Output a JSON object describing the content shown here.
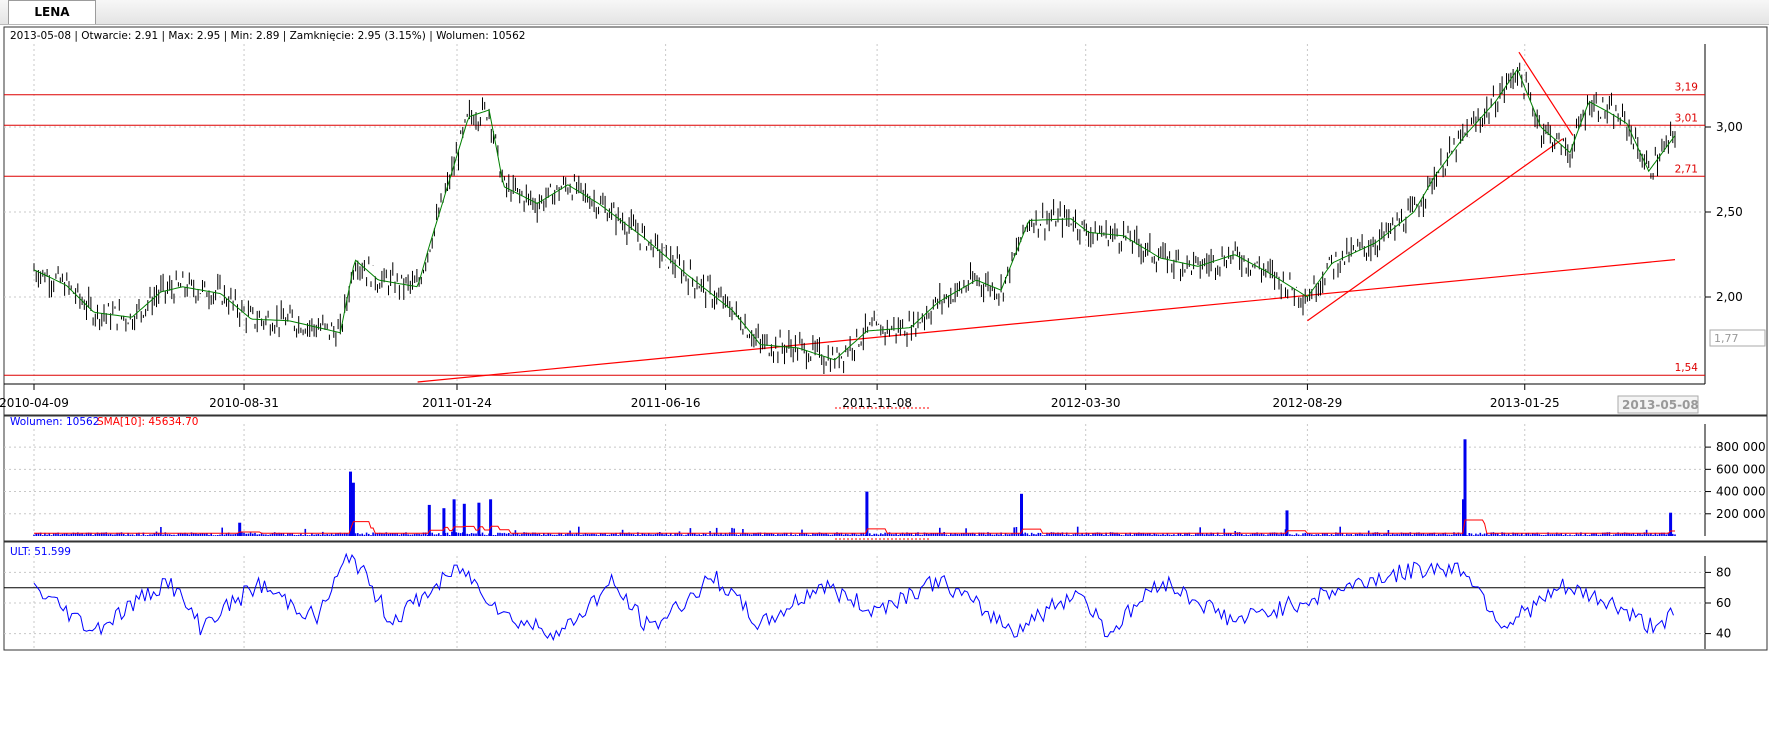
{
  "tab": {
    "label": "LENA"
  },
  "info": {
    "ohlc": "2013-05-08 | Otwarcie: 2.91 | Max: 2.95 | Min: 2.89 | Zamknięcie: 2.95 (3.15%)  | Wolumen: 10562",
    "volume_label": "Wolumen: 10562",
    "sma_label": "SMA[10]: 45634.70",
    "ult_label": "ULT: 51.599"
  },
  "colors": {
    "candle": "#000000",
    "ma": "#008000",
    "hline": "#dd0000",
    "trend": "#ff0000",
    "volume": "#0000ee",
    "vol_sma": "#ff0000",
    "ult": "#0000ff",
    "grid": "#c8c8c8"
  },
  "chart_data": [
    {
      "type": "candlestick",
      "title": "LENA",
      "x_ticks": [
        "2010-04-09",
        "2010-08-31",
        "2011-01-24",
        "2011-06-16",
        "2011-11-08",
        "2012-03-30",
        "2012-08-29",
        "2013-01-25"
      ],
      "x_range": [
        "2010-04-09",
        "2013-05-08"
      ],
      "y_ticks": [
        "2,00",
        "2,50",
        "3,00"
      ],
      "ylim": [
        1.54,
        3.48
      ],
      "cursor_price": "1,77",
      "cursor_date": "2013-05-08",
      "horizontal_levels": [
        {
          "value": 3.19,
          "label": "3,19"
        },
        {
          "value": 3.01,
          "label": "3,01"
        },
        {
          "value": 2.71,
          "label": "2,71"
        },
        {
          "value": 1.54,
          "label": "1,54"
        }
      ],
      "trendlines": [
        {
          "from": {
            "date": "2010-12-28",
            "price": 1.5
          },
          "to": {
            "date": "2013-05-08",
            "price": 2.22
          }
        },
        {
          "from": {
            "date": "2012-08-29",
            "price": 1.86
          },
          "to": {
            "date": "2013-02-20",
            "price": 2.93
          }
        },
        {
          "from": {
            "date": "2013-01-21",
            "price": 3.44
          },
          "to": {
            "date": "2013-02-27",
            "price": 2.95
          }
        }
      ],
      "close_path": [
        {
          "date": "2010-04-09",
          "close": 2.16
        },
        {
          "date": "2010-05-01",
          "close": 2.07
        },
        {
          "date": "2010-05-20",
          "close": 1.91
        },
        {
          "date": "2010-06-15",
          "close": 1.88
        },
        {
          "date": "2010-07-05",
          "close": 2.03
        },
        {
          "date": "2010-07-20",
          "close": 2.06
        },
        {
          "date": "2010-08-15",
          "close": 2.02
        },
        {
          "date": "2010-09-05",
          "close": 1.87
        },
        {
          "date": "2010-10-01",
          "close": 1.86
        },
        {
          "date": "2010-11-05",
          "close": 1.79
        },
        {
          "date": "2010-11-15",
          "close": 2.22
        },
        {
          "date": "2010-12-01",
          "close": 2.1
        },
        {
          "date": "2010-12-28",
          "close": 2.06
        },
        {
          "date": "2011-01-05",
          "close": 2.3
        },
        {
          "date": "2011-01-20",
          "close": 2.72
        },
        {
          "date": "2011-02-01",
          "close": 3.06
        },
        {
          "date": "2011-02-15",
          "close": 3.1
        },
        {
          "date": "2011-02-25",
          "close": 2.65
        },
        {
          "date": "2011-03-20",
          "close": 2.55
        },
        {
          "date": "2011-04-10",
          "close": 2.66
        },
        {
          "date": "2011-05-01",
          "close": 2.55
        },
        {
          "date": "2011-06-01",
          "close": 2.35
        },
        {
          "date": "2011-07-01",
          "close": 2.13
        },
        {
          "date": "2011-08-01",
          "close": 1.92
        },
        {
          "date": "2011-08-20",
          "close": 1.72
        },
        {
          "date": "2011-09-15",
          "close": 1.7
        },
        {
          "date": "2011-10-10",
          "close": 1.63
        },
        {
          "date": "2011-11-01",
          "close": 1.8
        },
        {
          "date": "2011-12-01",
          "close": 1.82
        },
        {
          "date": "2011-12-20",
          "close": 1.97
        },
        {
          "date": "2012-01-15",
          "close": 2.1
        },
        {
          "date": "2012-02-01",
          "close": 2.04
        },
        {
          "date": "2012-02-20",
          "close": 2.45
        },
        {
          "date": "2012-03-20",
          "close": 2.46
        },
        {
          "date": "2012-04-01",
          "close": 2.38
        },
        {
          "date": "2012-04-25",
          "close": 2.36
        },
        {
          "date": "2012-05-20",
          "close": 2.23
        },
        {
          "date": "2012-06-15",
          "close": 2.18
        },
        {
          "date": "2012-07-10",
          "close": 2.25
        },
        {
          "date": "2012-08-01",
          "close": 2.15
        },
        {
          "date": "2012-08-29",
          "close": 2.0
        },
        {
          "date": "2012-09-15",
          "close": 2.2
        },
        {
          "date": "2012-10-15",
          "close": 2.32
        },
        {
          "date": "2012-11-10",
          "close": 2.5
        },
        {
          "date": "2012-11-25",
          "close": 2.72
        },
        {
          "date": "2012-12-15",
          "close": 2.95
        },
        {
          "date": "2013-01-05",
          "close": 3.15
        },
        {
          "date": "2013-01-20",
          "close": 3.34
        },
        {
          "date": "2013-02-05",
          "close": 3.0
        },
        {
          "date": "2013-02-25",
          "close": 2.85
        },
        {
          "date": "2013-03-10",
          "close": 3.15
        },
        {
          "date": "2013-03-25",
          "close": 3.08
        },
        {
          "date": "2013-04-05",
          "close": 3.02
        },
        {
          "date": "2013-04-20",
          "close": 2.74
        },
        {
          "date": "2013-05-08",
          "close": 2.95
        }
      ]
    },
    {
      "type": "bar",
      "title": "Wolumen",
      "series": [
        {
          "name": "Wolumen"
        },
        {
          "name": "SMA[10]"
        }
      ],
      "y_ticks": [
        "200 000",
        "400 000",
        "600 000",
        "800 000"
      ],
      "ylim": [
        0,
        900000
      ],
      "baseline_volume": 20000,
      "spikes": [
        {
          "date": "2010-08-28",
          "value": 120000
        },
        {
          "date": "2010-11-12",
          "value": 580000
        },
        {
          "date": "2010-11-14",
          "value": 480000
        },
        {
          "date": "2011-01-05",
          "value": 280000
        },
        {
          "date": "2011-01-15",
          "value": 250000
        },
        {
          "date": "2011-01-22",
          "value": 330000
        },
        {
          "date": "2011-01-29",
          "value": 290000
        },
        {
          "date": "2011-02-08",
          "value": 300000
        },
        {
          "date": "2011-02-16",
          "value": 330000
        },
        {
          "date": "2011-11-01",
          "value": 400000
        },
        {
          "date": "2012-02-15",
          "value": 380000
        },
        {
          "date": "2012-08-15",
          "value": 230000
        },
        {
          "date": "2012-12-15",
          "value": 870000
        },
        {
          "date": "2012-12-14",
          "value": 330000
        },
        {
          "date": "2013-05-05",
          "value": 210000
        }
      ]
    },
    {
      "type": "line",
      "title": "ULT",
      "y_ticks": [
        "40",
        "60",
        "80"
      ],
      "ylim": [
        35,
        95
      ],
      "reference_line": 70,
      "points": [
        {
          "date": "2010-04-09",
          "value": 70
        },
        {
          "date": "2010-05-20",
          "value": 42
        },
        {
          "date": "2010-07-10",
          "value": 75
        },
        {
          "date": "2010-08-01",
          "value": 45
        },
        {
          "date": "2010-09-10",
          "value": 72
        },
        {
          "date": "2010-10-20",
          "value": 50
        },
        {
          "date": "2010-11-12",
          "value": 93
        },
        {
          "date": "2010-12-10",
          "value": 48
        },
        {
          "date": "2011-01-26",
          "value": 83
        },
        {
          "date": "2011-03-01",
          "value": 50
        },
        {
          "date": "2011-04-05",
          "value": 40
        },
        {
          "date": "2011-05-10",
          "value": 73
        },
        {
          "date": "2011-06-05",
          "value": 43
        },
        {
          "date": "2011-07-20",
          "value": 77
        },
        {
          "date": "2011-08-20",
          "value": 45
        },
        {
          "date": "2011-10-01",
          "value": 72
        },
        {
          "date": "2011-11-05",
          "value": 55
        },
        {
          "date": "2011-12-20",
          "value": 75
        },
        {
          "date": "2012-02-10",
          "value": 42
        },
        {
          "date": "2012-03-25",
          "value": 68
        },
        {
          "date": "2012-04-15",
          "value": 40
        },
        {
          "date": "2012-05-20",
          "value": 75
        },
        {
          "date": "2012-07-10",
          "value": 48
        },
        {
          "date": "2012-08-29",
          "value": 62
        },
        {
          "date": "2012-10-10",
          "value": 75
        },
        {
          "date": "2012-11-20",
          "value": 83
        },
        {
          "date": "2012-12-15",
          "value": 82
        },
        {
          "date": "2013-01-10",
          "value": 45
        },
        {
          "date": "2013-02-20",
          "value": 70
        },
        {
          "date": "2013-03-25",
          "value": 60
        },
        {
          "date": "2013-04-20",
          "value": 45
        },
        {
          "date": "2013-05-08",
          "value": 52
        }
      ]
    }
  ]
}
